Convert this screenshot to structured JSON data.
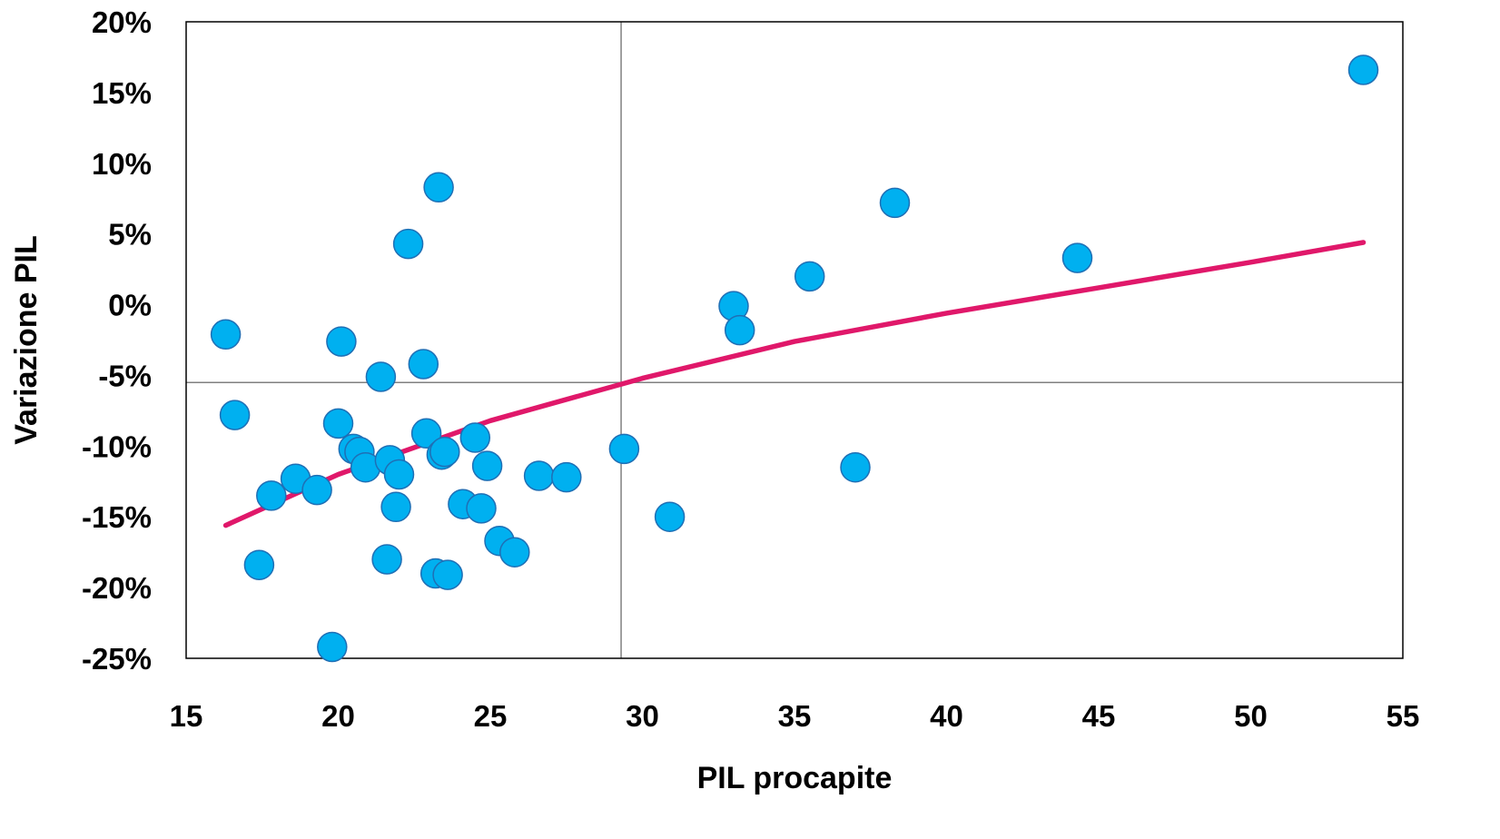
{
  "chart_data": {
    "type": "scatter",
    "title": "",
    "xlabel": "PIL procapite",
    "ylabel": "Variazione PIL",
    "xlim": [
      15,
      55
    ],
    "ylim": [
      -25,
      20
    ],
    "x_ticks": [
      15,
      20,
      25,
      30,
      35,
      40,
      45,
      50,
      55
    ],
    "y_ticks": [
      20,
      15,
      10,
      5,
      0,
      -5,
      -10,
      -15,
      -20,
      -25
    ],
    "y_tick_format": "percent",
    "grid": false,
    "reference_lines": {
      "x": 29.3,
      "y": -5.5
    },
    "legend": "none",
    "colors": {
      "points": "#00B0F0",
      "point_border": "#1F6FB5",
      "trend": "#E0186A",
      "frame": "#000000",
      "reference": "#808080"
    },
    "series": [
      {
        "points": [
          {
            "x": 16.3,
            "y": -2.1
          },
          {
            "x": 16.6,
            "y": -7.8
          },
          {
            "x": 17.4,
            "y": -18.4
          },
          {
            "x": 17.8,
            "y": -13.5
          },
          {
            "x": 18.6,
            "y": -12.3
          },
          {
            "x": 19.3,
            "y": -13.1
          },
          {
            "x": 19.8,
            "y": -24.2
          },
          {
            "x": 20.0,
            "y": -8.4
          },
          {
            "x": 20.1,
            "y": -2.6
          },
          {
            "x": 20.5,
            "y": -10.2
          },
          {
            "x": 20.7,
            "y": -10.4
          },
          {
            "x": 20.9,
            "y": -11.5
          },
          {
            "x": 21.4,
            "y": -5.1
          },
          {
            "x": 21.6,
            "y": -18.0
          },
          {
            "x": 21.7,
            "y": -11.0
          },
          {
            "x": 21.9,
            "y": -14.3
          },
          {
            "x": 22.0,
            "y": -12.0
          },
          {
            "x": 22.3,
            "y": 4.3
          },
          {
            "x": 22.8,
            "y": -4.2
          },
          {
            "x": 22.9,
            "y": -9.1
          },
          {
            "x": 23.2,
            "y": -19.0
          },
          {
            "x": 23.3,
            "y": 8.3
          },
          {
            "x": 23.4,
            "y": -10.6
          },
          {
            "x": 23.5,
            "y": -10.4
          },
          {
            "x": 23.6,
            "y": -19.1
          },
          {
            "x": 24.1,
            "y": -14.1
          },
          {
            "x": 24.5,
            "y": -9.4
          },
          {
            "x": 24.7,
            "y": -14.4
          },
          {
            "x": 24.9,
            "y": -11.4
          },
          {
            "x": 25.3,
            "y": -16.7
          },
          {
            "x": 25.8,
            "y": -17.5
          },
          {
            "x": 26.6,
            "y": -12.1
          },
          {
            "x": 27.5,
            "y": -12.2
          },
          {
            "x": 29.4,
            "y": -10.2
          },
          {
            "x": 30.9,
            "y": -15.0
          },
          {
            "x": 33.0,
            "y": -0.1
          },
          {
            "x": 33.2,
            "y": -1.8
          },
          {
            "x": 35.5,
            "y": 2.0
          },
          {
            "x": 37.0,
            "y": -11.5
          },
          {
            "x": 38.3,
            "y": 7.2
          },
          {
            "x": 44.3,
            "y": 3.3
          },
          {
            "x": 53.7,
            "y": 16.6
          }
        ]
      }
    ],
    "trendline": {
      "type": "logarithmic",
      "points": [
        {
          "x": 16.3,
          "y": -15.6
        },
        {
          "x": 20.0,
          "y": -12.0
        },
        {
          "x": 25.0,
          "y": -8.2
        },
        {
          "x": 30.0,
          "y": -5.2
        },
        {
          "x": 35.0,
          "y": -2.6
        },
        {
          "x": 40.0,
          "y": -0.6
        },
        {
          "x": 45.0,
          "y": 1.2
        },
        {
          "x": 50.0,
          "y": 3.0
        },
        {
          "x": 53.7,
          "y": 4.4
        }
      ]
    }
  }
}
